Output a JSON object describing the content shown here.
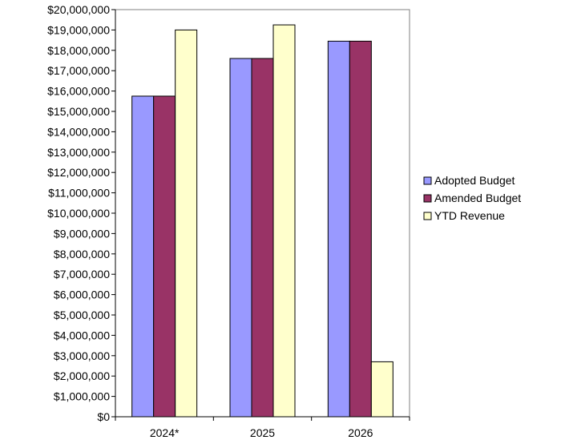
{
  "chart_data": {
    "type": "bar",
    "categories": [
      "2024*",
      "2025",
      "2026"
    ],
    "series": [
      {
        "name": "Adopted Budget",
        "color": "#9999ff",
        "values": [
          15750000,
          17600000,
          18450000
        ]
      },
      {
        "name": "Amended Budget",
        "color": "#993366",
        "values": [
          15750000,
          17600000,
          18450000
        ]
      },
      {
        "name": "YTD Revenue",
        "color": "#ffffcc",
        "values": [
          19000000,
          19250000,
          2700000
        ]
      }
    ],
    "ylim": [
      0,
      20000000
    ],
    "y_ticks": [
      "$0",
      "$1,000,000",
      "$2,000,000",
      "$3,000,000",
      "$4,000,000",
      "$5,000,000",
      "$6,000,000",
      "$7,000,000",
      "$8,000,000",
      "$9,000,000",
      "$10,000,000",
      "$11,000,000",
      "$12,000,000",
      "$13,000,000",
      "$14,000,000",
      "$15,000,000",
      "$16,000,000",
      "$17,000,000",
      "$18,000,000",
      "$19,000,000",
      "$20,000,000"
    ],
    "grid": false,
    "legend_position": "right"
  }
}
